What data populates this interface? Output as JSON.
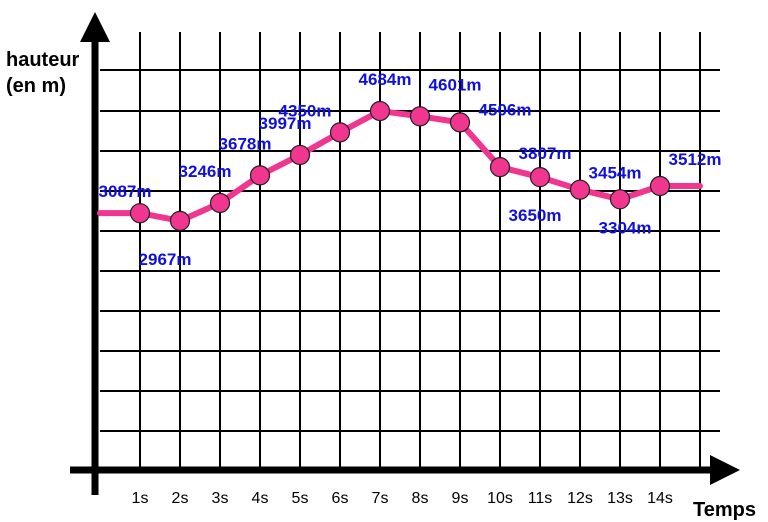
{
  "chart_data": {
    "type": "line",
    "ylabel_lines": [
      "hauteur",
      "(en m)"
    ],
    "xlabel": "Temps",
    "x_ticks": [
      "1s",
      "2s",
      "3s",
      "4s",
      "5s",
      "6s",
      "7s",
      "8s",
      "9s",
      "10s",
      "11s",
      "12s",
      "13s",
      "14s"
    ],
    "series": [
      {
        "x": [
          1,
          2,
          3,
          4,
          5,
          6,
          7,
          8,
          9,
          10,
          11,
          12,
          13,
          14
        ],
        "values": [
          3087,
          2967,
          3246,
          3678,
          3997,
          4350,
          4684,
          4601,
          4506,
          3807,
          3650,
          3454,
          3304,
          3512
        ],
        "labels": [
          "3087m",
          "2967m",
          "3246m",
          "3678m",
          "3997m",
          "4350m",
          "4684m",
          "4601m",
          "4506m",
          "3807m",
          "3650m",
          "3454m",
          "3304m",
          "3512m"
        ]
      }
    ],
    "line_color": "#f0368f",
    "label_color": "#1010dd",
    "grid": true
  }
}
